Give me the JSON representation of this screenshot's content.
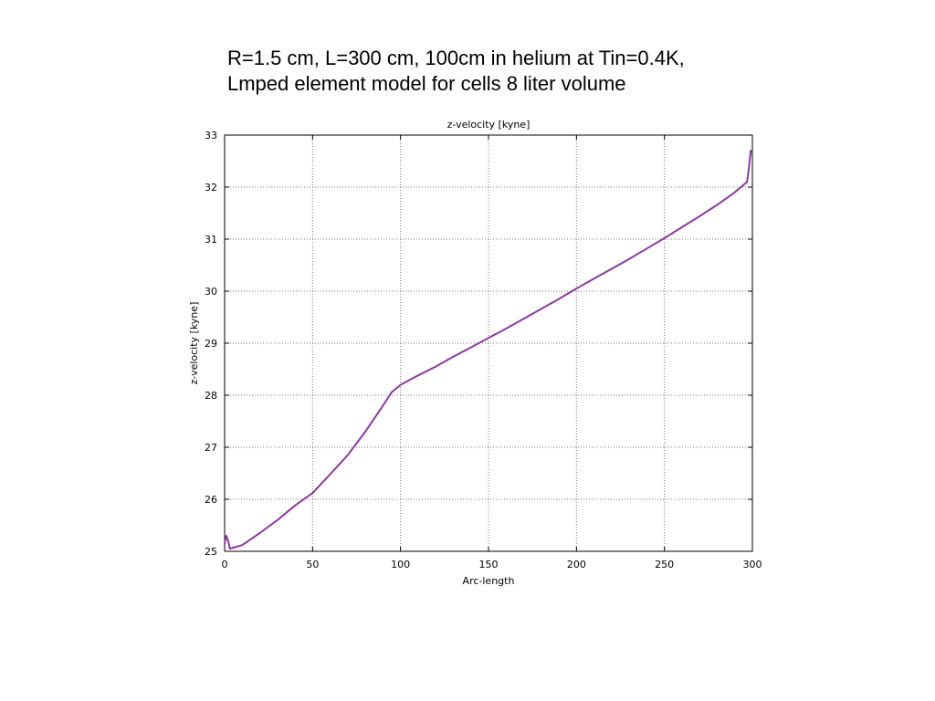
{
  "caption": {
    "line1": "R=1.5 cm, L=300 cm, 100cm in helium at Tin=0.4K,",
    "line2": "Lmped element model for cells 8 liter volume"
  },
  "chart_data": {
    "type": "line",
    "title": "z-velocity [kyne]",
    "xlabel": "Arc-length",
    "ylabel": "z-velocity [kyne]",
    "xlim": [
      0,
      300
    ],
    "ylim": [
      25,
      33
    ],
    "xticks": [
      0,
      50,
      100,
      150,
      200,
      250,
      300
    ],
    "yticks": [
      25,
      26,
      27,
      28,
      29,
      30,
      31,
      32,
      33
    ],
    "grid": true,
    "line_color": "#8b3a9e",
    "series": [
      {
        "x": [
          0,
          1,
          2,
          3,
          5,
          10,
          20,
          30,
          40,
          50,
          60,
          70,
          80,
          90,
          95,
          100,
          110,
          120,
          130,
          140,
          150,
          160,
          170,
          180,
          190,
          200,
          210,
          220,
          230,
          240,
          250,
          260,
          270,
          280,
          290,
          297,
          298,
          299,
          300
        ],
        "y": [
          25.15,
          25.3,
          25.2,
          25.05,
          25.07,
          25.12,
          25.35,
          25.6,
          25.88,
          26.12,
          26.48,
          26.85,
          27.3,
          27.8,
          28.06,
          28.2,
          28.38,
          28.55,
          28.74,
          28.92,
          29.1,
          29.28,
          29.47,
          29.66,
          29.85,
          30.05,
          30.24,
          30.43,
          30.62,
          30.82,
          31.02,
          31.23,
          31.44,
          31.66,
          31.9,
          32.1,
          32.35,
          32.7,
          32.65
        ]
      }
    ]
  }
}
